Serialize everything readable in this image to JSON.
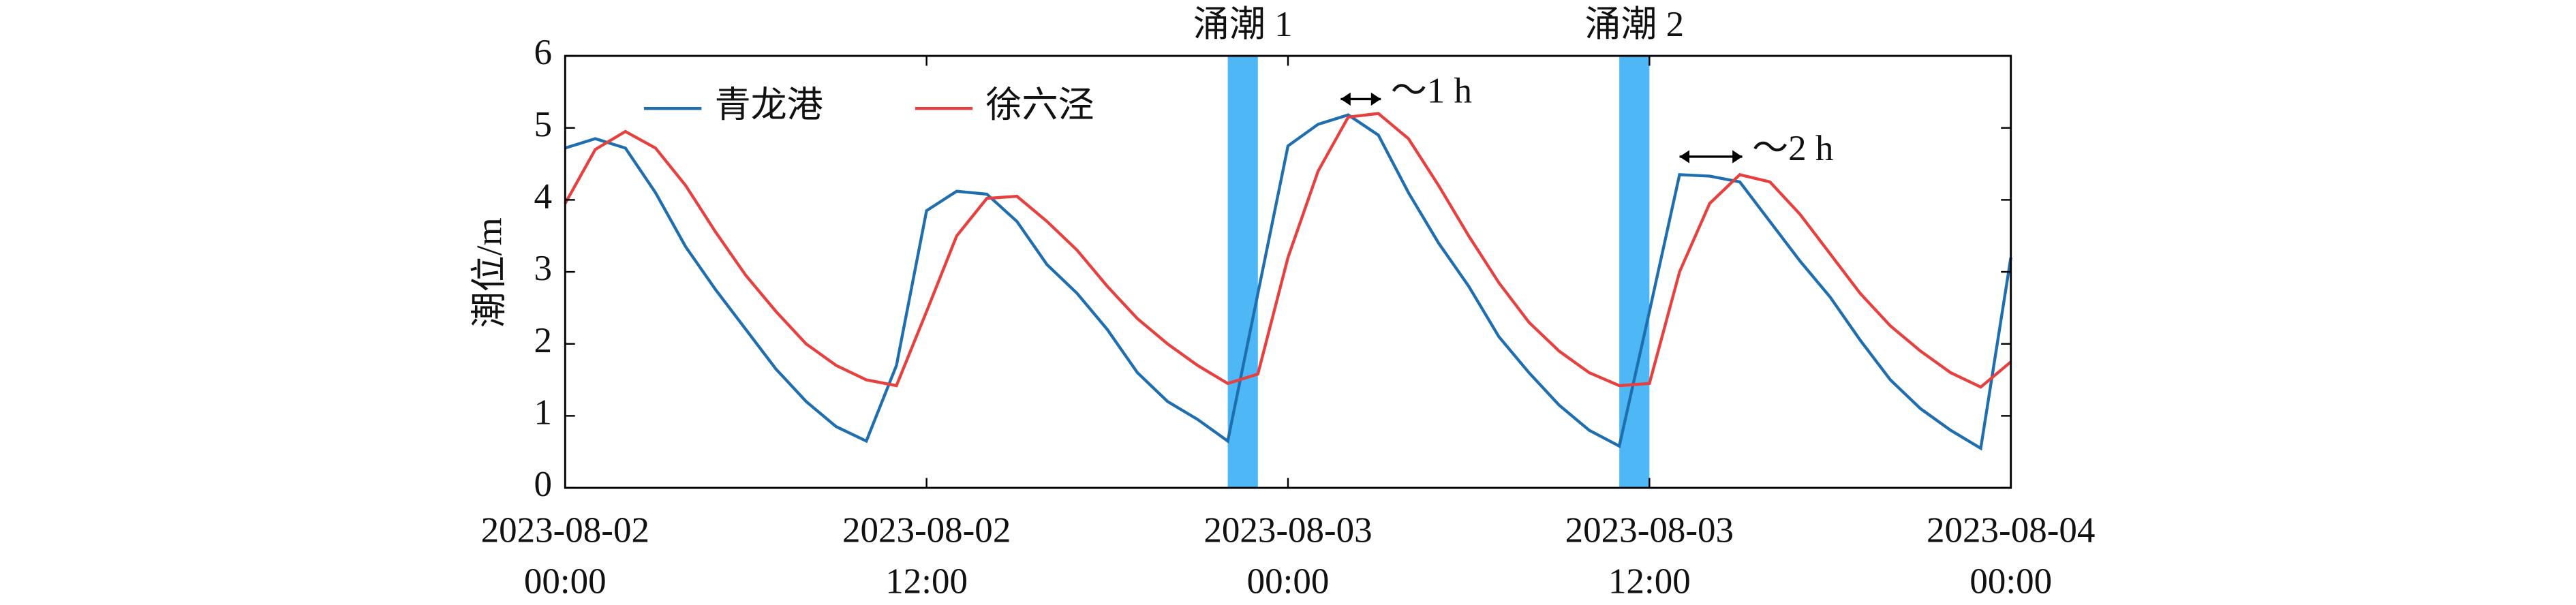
{
  "chart_data": {
    "type": "line",
    "ylabel": "潮位/m",
    "x": [
      "2023-08-02 00:00",
      "2023-08-02 01:00",
      "2023-08-02 02:00",
      "2023-08-02 03:00",
      "2023-08-02 04:00",
      "2023-08-02 05:00",
      "2023-08-02 06:00",
      "2023-08-02 07:00",
      "2023-08-02 08:00",
      "2023-08-02 09:00",
      "2023-08-02 10:00",
      "2023-08-02 11:00",
      "2023-08-02 12:00",
      "2023-08-02 13:00",
      "2023-08-02 14:00",
      "2023-08-02 15:00",
      "2023-08-02 16:00",
      "2023-08-02 17:00",
      "2023-08-02 18:00",
      "2023-08-02 19:00",
      "2023-08-02 20:00",
      "2023-08-02 21:00",
      "2023-08-02 22:00",
      "2023-08-02 23:00",
      "2023-08-03 00:00",
      "2023-08-03 01:00",
      "2023-08-03 02:00",
      "2023-08-03 03:00",
      "2023-08-03 04:00",
      "2023-08-03 05:00",
      "2023-08-03 06:00",
      "2023-08-03 07:00",
      "2023-08-03 08:00",
      "2023-08-03 09:00",
      "2023-08-03 10:00",
      "2023-08-03 11:00",
      "2023-08-03 12:00",
      "2023-08-03 13:00",
      "2023-08-03 14:00",
      "2023-08-03 15:00",
      "2023-08-03 16:00",
      "2023-08-03 17:00",
      "2023-08-03 18:00",
      "2023-08-03 19:00",
      "2023-08-03 20:00",
      "2023-08-03 21:00",
      "2023-08-03 22:00",
      "2023-08-03 23:00",
      "2023-08-04 00:00"
    ],
    "series": [
      {
        "name": "青龙港",
        "color": "#1f6fb0",
        "values": [
          4.72,
          4.85,
          4.72,
          4.1,
          3.35,
          2.75,
          2.2,
          1.65,
          1.2,
          0.85,
          0.65,
          1.7,
          3.85,
          4.12,
          4.08,
          3.7,
          3.1,
          2.7,
          2.2,
          1.6,
          1.2,
          0.95,
          0.65,
          2.7,
          4.75,
          5.05,
          5.18,
          4.9,
          4.1,
          3.4,
          2.8,
          2.1,
          1.6,
          1.15,
          0.8,
          0.58,
          2.45,
          4.35,
          4.33,
          4.25,
          3.7,
          3.15,
          2.65,
          2.05,
          1.5,
          1.1,
          0.8,
          0.55,
          3.2
        ]
      },
      {
        "name": "徐六泾",
        "color": "#e8403f",
        "values": [
          3.95,
          4.7,
          4.95,
          4.72,
          4.2,
          3.55,
          2.95,
          2.45,
          2.0,
          1.7,
          1.5,
          1.42,
          2.45,
          3.5,
          4.02,
          4.05,
          3.7,
          3.3,
          2.8,
          2.35,
          2.0,
          1.7,
          1.45,
          1.58,
          3.2,
          4.4,
          5.15,
          5.2,
          4.85,
          4.2,
          3.5,
          2.85,
          2.3,
          1.9,
          1.6,
          1.42,
          1.45,
          3.0,
          3.95,
          4.35,
          4.25,
          3.8,
          3.25,
          2.7,
          2.25,
          1.9,
          1.6,
          1.4,
          1.75
        ]
      }
    ],
    "xlim": [
      "2023-08-02 00:00",
      "2023-08-04 00:00"
    ],
    "xticks": [
      {
        "value": "2023-08-02 00:00",
        "label": [
          "2023-08-02",
          "00:00"
        ]
      },
      {
        "value": "2023-08-02 12:00",
        "label": [
          "2023-08-02",
          "12:00"
        ]
      },
      {
        "value": "2023-08-03 00:00",
        "label": [
          "2023-08-03",
          "00:00"
        ]
      },
      {
        "value": "2023-08-03 12:00",
        "label": [
          "2023-08-03",
          "12:00"
        ]
      },
      {
        "value": "2023-08-04 00:00",
        "label": [
          "2023-08-04",
          "00:00"
        ]
      }
    ],
    "ylim": [
      0,
      6
    ],
    "yticks": [
      0,
      1,
      2,
      3,
      4,
      5,
      6
    ],
    "legend": "upper left",
    "bands": [
      {
        "label": "涌潮 1",
        "start": "2023-08-02 22:00",
        "end": "2023-08-02 23:00",
        "color": "#4db8f5"
      },
      {
        "label": "涌潮 2",
        "start": "2023-08-03 11:00",
        "end": "2023-08-03 12:00",
        "color": "#4db8f5"
      }
    ],
    "arrows": [
      {
        "label": "～1 h",
        "from": "2023-08-03 01:45",
        "to": "2023-08-03 03:05",
        "y": 5.4
      },
      {
        "label": "～2 h",
        "from": "2023-08-03 13:00",
        "to": "2023-08-03 15:05",
        "y": 4.6
      }
    ]
  }
}
